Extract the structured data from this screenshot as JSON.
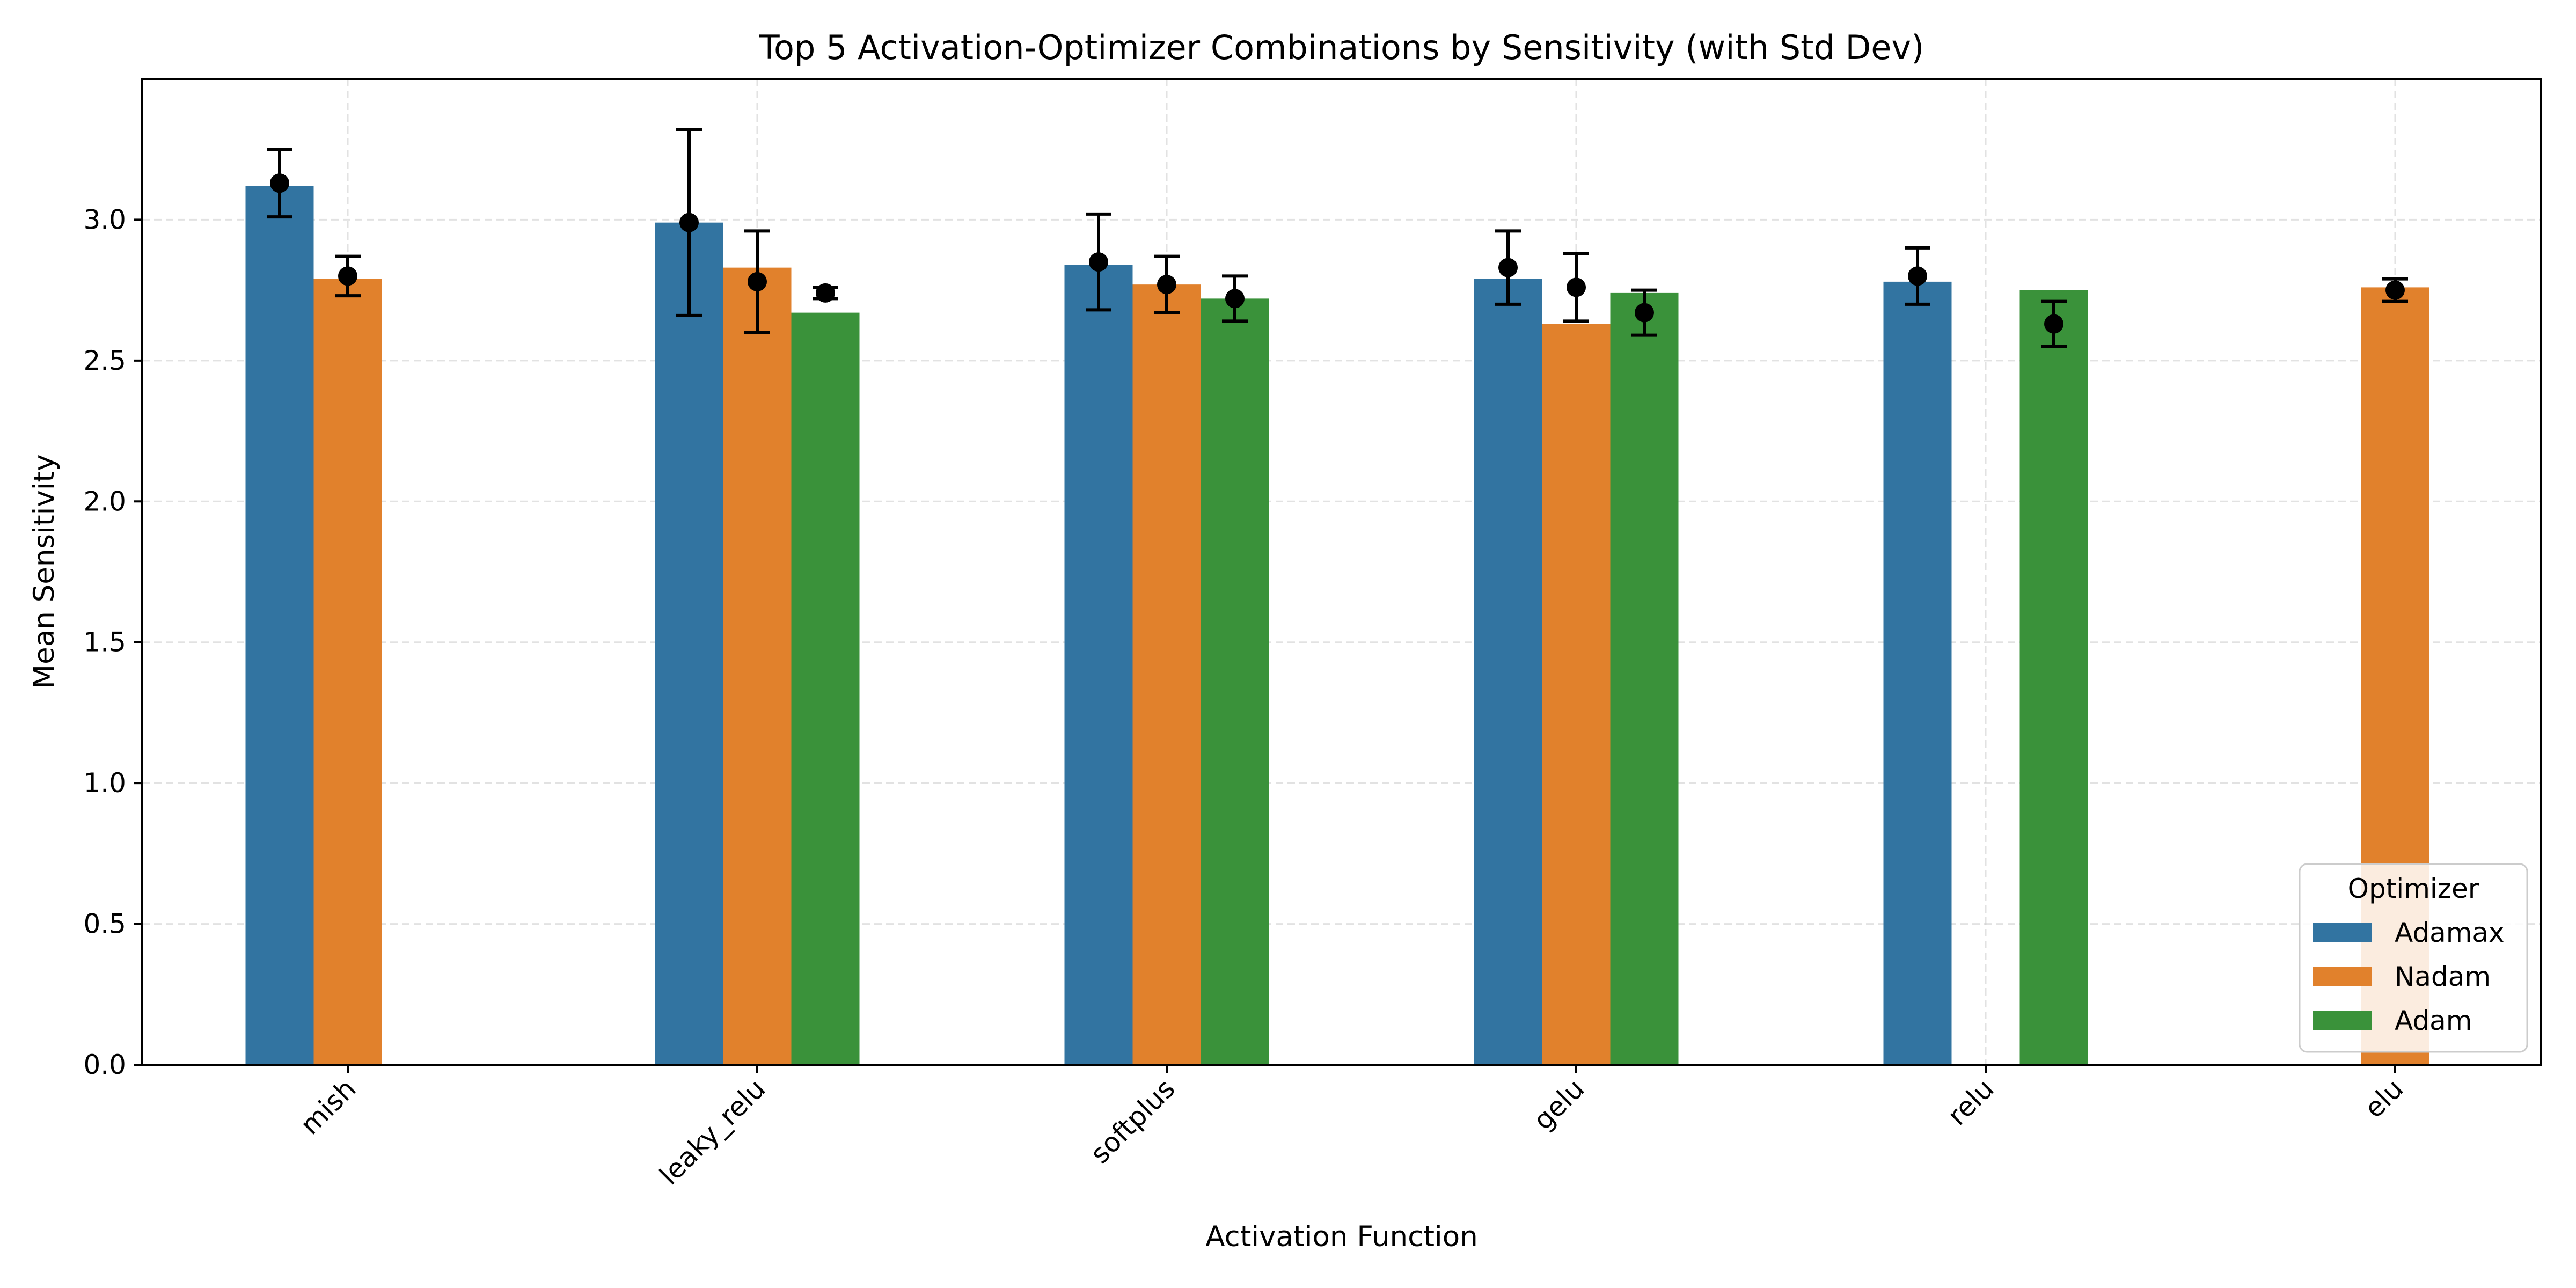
{
  "chart_data": {
    "type": "bar",
    "title": "Top 5 Activation-Optimizer Combinations by Sensitivity (with Std Dev)",
    "xlabel": "Activation Function",
    "ylabel": "Mean Sensitivity",
    "ylim": [
      0,
      3.5
    ],
    "yticks": [
      "0.0",
      "0.5",
      "1.0",
      "1.5",
      "2.0",
      "2.5",
      "3.0"
    ],
    "categories": [
      "mish",
      "leaky_relu",
      "softplus",
      "gelu",
      "relu",
      "elu"
    ],
    "grid": true,
    "legend": {
      "title": "Optimizer",
      "placement": "lower-right"
    },
    "series": [
      {
        "name": "Adamax",
        "color": "#3274a1",
        "values": [
          3.12,
          2.99,
          2.84,
          2.79,
          2.78,
          null
        ],
        "points": [
          3.13,
          2.99,
          2.85,
          2.83,
          2.8,
          null
        ],
        "std": [
          0.12,
          0.33,
          0.17,
          0.13,
          0.1,
          null
        ]
      },
      {
        "name": "Nadam",
        "color": "#e1812c",
        "values": [
          2.79,
          2.83,
          2.77,
          2.63,
          null,
          2.76
        ],
        "points": [
          2.8,
          2.78,
          2.77,
          2.76,
          null,
          2.75
        ],
        "std": [
          0.07,
          0.18,
          0.1,
          0.12,
          null,
          0.04
        ]
      },
      {
        "name": "Adam",
        "color": "#3a923a",
        "values": [
          null,
          2.67,
          2.72,
          2.74,
          2.75,
          null
        ],
        "points": [
          null,
          2.74,
          2.72,
          2.67,
          2.63,
          null
        ],
        "std": [
          null,
          0.02,
          0.08,
          0.08,
          0.08,
          null
        ]
      }
    ]
  }
}
